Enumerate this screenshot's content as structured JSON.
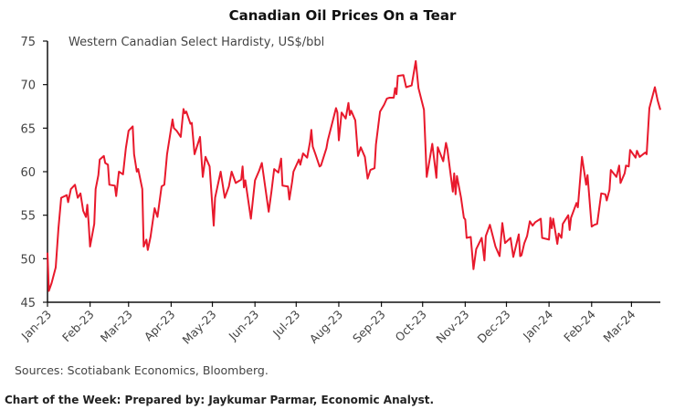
{
  "chart_data": {
    "type": "line",
    "title": "Canadian Oil Prices On a Tear",
    "series_label": "Western Canadian Select Hardisty, US$/bbl",
    "ylim": [
      45,
      75
    ],
    "yticks": [
      45,
      50,
      55,
      60,
      65,
      70,
      75
    ],
    "xlim": [
      "2023-01-01",
      "2024-03-22"
    ],
    "xticks": [
      {
        "date": "2023-01-01",
        "label": "Jan-23"
      },
      {
        "date": "2023-02-01",
        "label": "Feb-23"
      },
      {
        "date": "2023-03-01",
        "label": "Mar-23"
      },
      {
        "date": "2023-04-01",
        "label": "Apr-23"
      },
      {
        "date": "2023-05-01",
        "label": "May-23"
      },
      {
        "date": "2023-06-01",
        "label": "Jun-23"
      },
      {
        "date": "2023-07-01",
        "label": "Jul-23"
      },
      {
        "date": "2023-08-01",
        "label": "Aug-23"
      },
      {
        "date": "2023-09-01",
        "label": "Sep-23"
      },
      {
        "date": "2023-10-01",
        "label": "Oct-23"
      },
      {
        "date": "2023-11-01",
        "label": "Nov-23"
      },
      {
        "date": "2023-12-01",
        "label": "Dec-23"
      },
      {
        "date": "2024-01-01",
        "label": "Jan-24"
      },
      {
        "date": "2024-02-01",
        "label": "Feb-24"
      },
      {
        "date": "2024-03-01",
        "label": "Mar-24"
      }
    ],
    "grid": false,
    "color": "#e8192c",
    "points": [
      [
        "2023-01-01",
        50.7
      ],
      [
        "2023-01-02",
        46.3
      ],
      [
        "2023-01-04",
        47.2
      ],
      [
        "2023-01-07",
        49.0
      ],
      [
        "2023-01-09",
        53.5
      ],
      [
        "2023-01-11",
        57.0
      ],
      [
        "2023-01-15",
        57.3
      ],
      [
        "2023-01-16",
        56.5
      ],
      [
        "2023-01-18",
        58.0
      ],
      [
        "2023-01-21",
        58.5
      ],
      [
        "2023-01-23",
        57.0
      ],
      [
        "2023-01-25",
        57.5
      ],
      [
        "2023-01-27",
        55.5
      ],
      [
        "2023-01-29",
        54.8
      ],
      [
        "2023-01-30",
        56.2
      ],
      [
        "2023-01-31",
        54.0
      ],
      [
        "2023-02-01",
        51.4
      ],
      [
        "2023-02-04",
        54.0
      ],
      [
        "2023-02-05",
        58.0
      ],
      [
        "2023-02-07",
        59.6
      ],
      [
        "2023-02-08",
        61.4
      ],
      [
        "2023-02-11",
        61.8
      ],
      [
        "2023-02-12",
        61.0
      ],
      [
        "2023-02-14",
        60.8
      ],
      [
        "2023-02-15",
        58.5
      ],
      [
        "2023-02-19",
        58.4
      ],
      [
        "2023-02-20",
        57.2
      ],
      [
        "2023-02-22",
        60.0
      ],
      [
        "2023-02-25",
        59.7
      ],
      [
        "2023-02-27",
        62.7
      ],
      [
        "2023-03-01",
        64.7
      ],
      [
        "2023-03-04",
        65.2
      ],
      [
        "2023-03-05",
        62.0
      ],
      [
        "2023-03-07",
        60.0
      ],
      [
        "2023-03-08",
        60.3
      ],
      [
        "2023-03-11",
        58.0
      ],
      [
        "2023-03-12",
        51.4
      ],
      [
        "2023-03-14",
        52.2
      ],
      [
        "2023-03-15",
        51.0
      ],
      [
        "2023-03-17",
        52.5
      ],
      [
        "2023-03-20",
        55.8
      ],
      [
        "2023-03-22",
        54.8
      ],
      [
        "2023-03-25",
        58.3
      ],
      [
        "2023-03-27",
        58.5
      ],
      [
        "2023-03-29",
        62.0
      ],
      [
        "2023-04-02",
        66.0
      ],
      [
        "2023-04-03",
        65.0
      ],
      [
        "2023-04-05",
        64.7
      ],
      [
        "2023-04-08",
        64.0
      ],
      [
        "2023-04-10",
        67.2
      ],
      [
        "2023-04-11",
        66.7
      ],
      [
        "2023-04-12",
        66.9
      ],
      [
        "2023-04-15",
        65.5
      ],
      [
        "2023-04-16",
        65.6
      ],
      [
        "2023-04-18",
        62.0
      ],
      [
        "2023-04-22",
        64.0
      ],
      [
        "2023-04-24",
        59.4
      ],
      [
        "2023-04-26",
        61.7
      ],
      [
        "2023-04-29",
        60.6
      ],
      [
        "2023-05-02",
        53.8
      ],
      [
        "2023-05-03",
        57.0
      ],
      [
        "2023-05-07",
        60.0
      ],
      [
        "2023-05-10",
        57.0
      ],
      [
        "2023-05-13",
        58.3
      ],
      [
        "2023-05-15",
        60.0
      ],
      [
        "2023-05-18",
        58.7
      ],
      [
        "2023-05-22",
        59.1
      ],
      [
        "2023-05-23",
        60.6
      ],
      [
        "2023-05-24",
        58.2
      ],
      [
        "2023-05-25",
        59.0
      ],
      [
        "2023-05-29",
        54.6
      ],
      [
        "2023-06-01",
        59.0
      ],
      [
        "2023-06-04",
        60.1
      ],
      [
        "2023-06-06",
        61.0
      ],
      [
        "2023-06-11",
        55.4
      ],
      [
        "2023-06-13",
        57.7
      ],
      [
        "2023-06-15",
        60.3
      ],
      [
        "2023-06-18",
        59.9
      ],
      [
        "2023-06-20",
        61.5
      ],
      [
        "2023-06-21",
        58.4
      ],
      [
        "2023-06-25",
        58.3
      ],
      [
        "2023-06-26",
        56.8
      ],
      [
        "2023-06-28",
        58.8
      ],
      [
        "2023-06-29",
        60.0
      ],
      [
        "2023-07-03",
        61.4
      ],
      [
        "2023-07-04",
        60.8
      ],
      [
        "2023-07-06",
        62.1
      ],
      [
        "2023-07-09",
        61.6
      ],
      [
        "2023-07-11",
        63.4
      ],
      [
        "2023-07-12",
        64.8
      ],
      [
        "2023-07-13",
        62.9
      ],
      [
        "2023-07-15",
        62.0
      ],
      [
        "2023-07-18",
        60.6
      ],
      [
        "2023-07-19",
        60.7
      ],
      [
        "2023-07-23",
        62.7
      ],
      [
        "2023-07-24",
        63.6
      ],
      [
        "2023-07-30",
        67.3
      ],
      [
        "2023-07-31",
        66.8
      ],
      [
        "2023-08-01",
        63.6
      ],
      [
        "2023-08-03",
        66.8
      ],
      [
        "2023-08-06",
        66.1
      ],
      [
        "2023-08-08",
        67.9
      ],
      [
        "2023-08-09",
        66.5
      ],
      [
        "2023-08-10",
        67.0
      ],
      [
        "2023-08-13",
        65.9
      ],
      [
        "2023-08-15",
        61.8
      ],
      [
        "2023-08-17",
        62.8
      ],
      [
        "2023-08-20",
        61.7
      ],
      [
        "2023-08-22",
        59.2
      ],
      [
        "2023-08-24",
        60.2
      ],
      [
        "2023-08-27",
        60.4
      ],
      [
        "2023-08-28",
        63.1
      ],
      [
        "2023-08-31",
        66.9
      ],
      [
        "2023-09-03",
        67.7
      ],
      [
        "2023-09-05",
        68.4
      ],
      [
        "2023-09-07",
        68.5
      ],
      [
        "2023-09-10",
        68.5
      ],
      [
        "2023-09-11",
        69.6
      ],
      [
        "2023-09-12",
        68.9
      ],
      [
        "2023-09-13",
        71.0
      ],
      [
        "2023-09-17",
        71.1
      ],
      [
        "2023-09-19",
        69.7
      ],
      [
        "2023-09-23",
        69.9
      ],
      [
        "2023-09-26",
        72.7
      ],
      [
        "2023-09-28",
        69.6
      ],
      [
        "2023-10-02",
        67.1
      ],
      [
        "2023-10-04",
        59.4
      ],
      [
        "2023-10-05",
        60.3
      ],
      [
        "2023-10-08",
        63.2
      ],
      [
        "2023-10-11",
        59.3
      ],
      [
        "2023-10-12",
        62.8
      ],
      [
        "2023-10-16",
        61.2
      ],
      [
        "2023-10-18",
        63.3
      ],
      [
        "2023-10-19",
        62.6
      ],
      [
        "2023-10-23",
        57.7
      ],
      [
        "2023-10-24",
        59.8
      ],
      [
        "2023-10-25",
        57.4
      ],
      [
        "2023-10-26",
        59.5
      ],
      [
        "2023-10-29",
        57.0
      ],
      [
        "2023-10-31",
        54.7
      ],
      [
        "2023-11-01",
        54.5
      ],
      [
        "2023-11-02",
        52.4
      ],
      [
        "2023-11-05",
        52.5
      ],
      [
        "2023-11-07",
        48.8
      ],
      [
        "2023-11-09",
        51.1
      ],
      [
        "2023-11-13",
        52.4
      ],
      [
        "2023-11-15",
        49.8
      ],
      [
        "2023-11-16",
        52.6
      ],
      [
        "2023-11-19",
        53.9
      ],
      [
        "2023-11-23",
        51.4
      ],
      [
        "2023-11-26",
        50.3
      ],
      [
        "2023-11-28",
        54.1
      ],
      [
        "2023-11-30",
        51.8
      ],
      [
        "2023-12-04",
        52.4
      ],
      [
        "2023-12-06",
        50.2
      ],
      [
        "2023-12-10",
        52.8
      ],
      [
        "2023-12-11",
        50.3
      ],
      [
        "2023-12-12",
        50.4
      ],
      [
        "2023-12-14",
        51.8
      ],
      [
        "2023-12-16",
        52.6
      ],
      [
        "2023-12-18",
        54.3
      ],
      [
        "2023-12-20",
        53.8
      ],
      [
        "2023-12-22",
        54.2
      ],
      [
        "2023-12-26",
        54.6
      ],
      [
        "2023-12-27",
        52.4
      ],
      [
        "2024-01-01",
        52.2
      ],
      [
        "2024-01-02",
        54.7
      ],
      [
        "2024-01-03",
        53.5
      ],
      [
        "2024-01-04",
        54.6
      ],
      [
        "2024-01-07",
        51.7
      ],
      [
        "2024-01-08",
        52.9
      ],
      [
        "2024-01-10",
        52.4
      ],
      [
        "2024-01-11",
        54.0
      ],
      [
        "2024-01-15",
        55.0
      ],
      [
        "2024-01-16",
        53.3
      ],
      [
        "2024-01-17",
        54.7
      ],
      [
        "2024-01-21",
        56.4
      ],
      [
        "2024-01-22",
        55.9
      ],
      [
        "2024-01-25",
        61.7
      ],
      [
        "2024-01-28",
        58.5
      ],
      [
        "2024-01-29",
        59.6
      ],
      [
        "2024-02-01",
        53.7
      ],
      [
        "2024-02-03",
        53.9
      ],
      [
        "2024-02-05",
        54.0
      ],
      [
        "2024-02-08",
        57.5
      ],
      [
        "2024-02-11",
        57.4
      ],
      [
        "2024-02-12",
        56.7
      ],
      [
        "2024-02-14",
        57.9
      ],
      [
        "2024-02-15",
        60.2
      ],
      [
        "2024-02-19",
        59.4
      ],
      [
        "2024-02-21",
        60.7
      ],
      [
        "2024-02-22",
        58.7
      ],
      [
        "2024-02-25",
        59.8
      ],
      [
        "2024-02-26",
        60.7
      ],
      [
        "2024-02-28",
        60.6
      ],
      [
        "2024-02-29",
        62.5
      ],
      [
        "2024-03-04",
        61.6
      ],
      [
        "2024-03-05",
        62.4
      ],
      [
        "2024-03-07",
        61.7
      ],
      [
        "2024-03-11",
        62.2
      ],
      [
        "2024-03-12",
        62.0
      ],
      [
        "2024-03-14",
        67.3
      ],
      [
        "2024-03-18",
        69.7
      ],
      [
        "2024-03-20",
        68.2
      ],
      [
        "2024-03-22",
        67.1
      ]
    ]
  },
  "sources": "Sources: Scotiabank Economics, Bloomberg.",
  "footer": "Chart of the Week: Prepared by: Jaykumar Parmar, Economic Analyst."
}
